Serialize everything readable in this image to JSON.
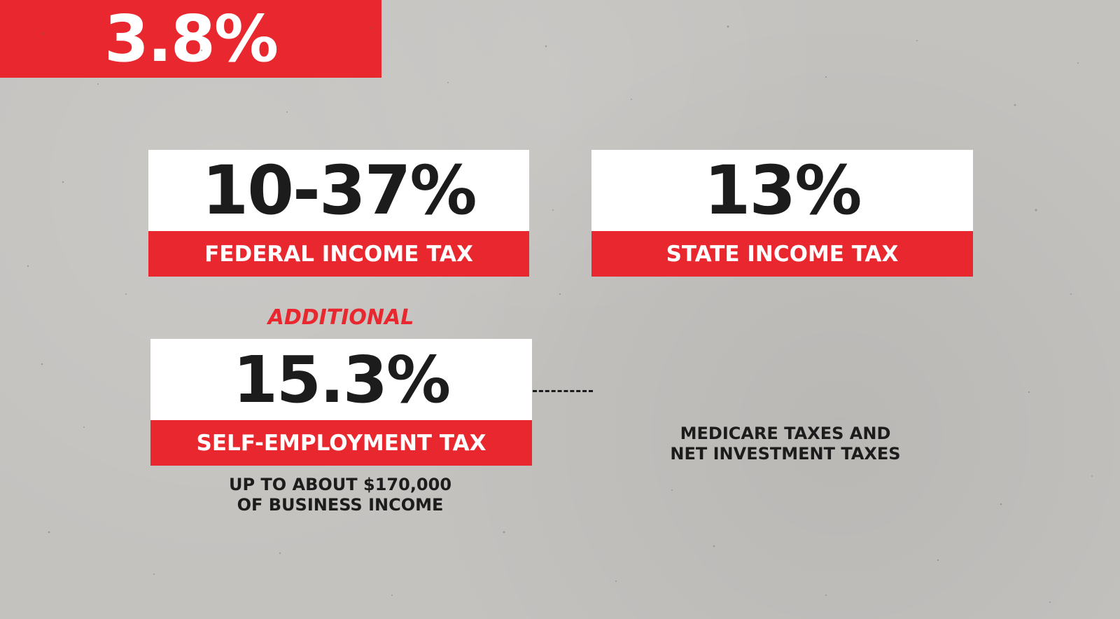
{
  "federal": {
    "rate": "10-37%",
    "label": "FEDERAL INCOME TAX"
  },
  "state": {
    "rate": "13%",
    "label": "STATE INCOME TAX"
  },
  "additional_label": "ADDITIONAL",
  "self_employment": {
    "rate": "15.3%",
    "label": "SELF-EMPLOYMENT TAX",
    "note_line1": "UP TO ABOUT $170,000",
    "note_line2": "OF BUSINESS INCOME"
  },
  "medicare": {
    "rate": "3.8%",
    "note_line1": "MEDICARE TAXES AND",
    "note_line2": "NET INVESTMENT TAXES"
  },
  "colors": {
    "accent_red": "#e8282e",
    "background": "#c4c2bf",
    "text_dark": "#1c1c1c"
  }
}
